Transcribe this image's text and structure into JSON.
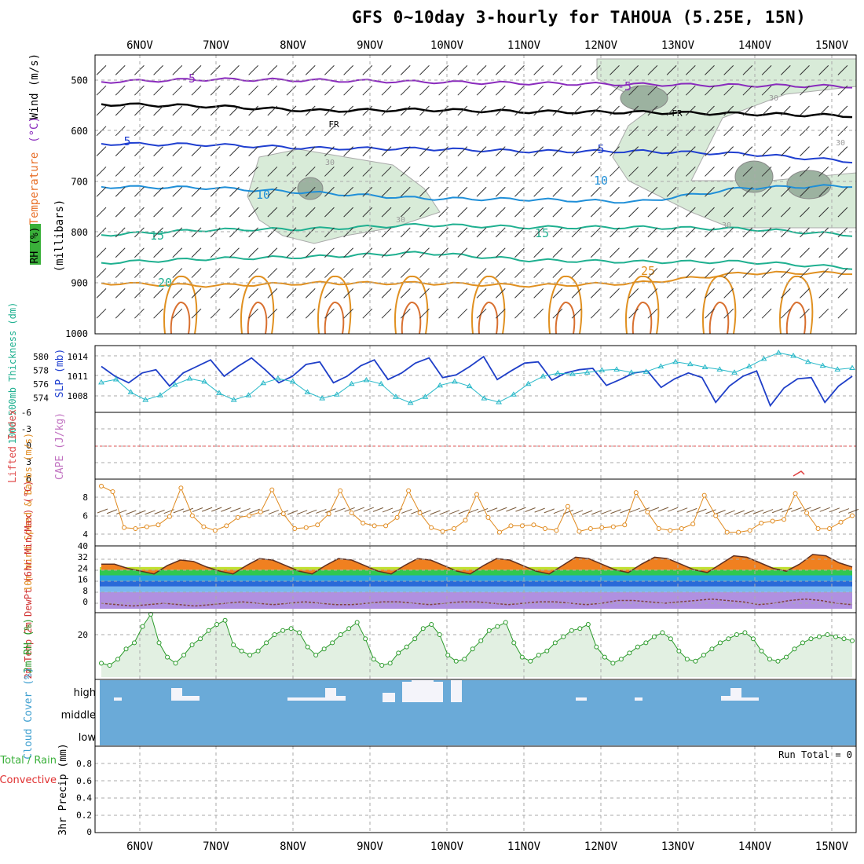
{
  "title": "GFS 0~10day 3-hourly for TAHOUA (5.25E, 15N)",
  "dates": [
    "6NOV",
    "7NOV",
    "8NOV",
    "9NOV",
    "10NOV",
    "11NOV",
    "12NOV",
    "13NOV",
    "14NOV",
    "15NOV"
  ],
  "colors": {
    "grid": "#aaaaaa",
    "purple": "#8a2bbd",
    "blue": "#1f3fd0",
    "cyan": "#1f8fd8",
    "teal": "#1fb090",
    "orange": "#e09020",
    "magenta": "#c01880",
    "rh": "#d8ebd8",
    "slp": "#1f3fc8",
    "thick": "#27b8c8",
    "wspd": "#e08a1e",
    "barb": "#7a5a3a",
    "rh2m": "#2a9a2a",
    "cloud": "#6aaad8"
  },
  "chart_data": [
    {
      "type": "contour",
      "panel": "upper",
      "ylabel_lines": [
        "Wind",
        "(m/s)",
        "Temperature",
        "(°C)",
        "RH",
        "(%)",
        "(millibars)"
      ],
      "ylim": [
        1000,
        450
      ],
      "yticks": [
        "500",
        "600",
        "700",
        "800",
        "900",
        "1000"
      ],
      "isotherms": [
        {
          "label": "-5",
          "color": "purple",
          "levels_mb": [
            503,
            498,
            500,
            503,
            506,
            508,
            510,
            512
          ]
        },
        {
          "label": "FR",
          "color": "black",
          "levels_mb": [
            547,
            551,
            560,
            558,
            562,
            563,
            566,
            570
          ]
        },
        {
          "label": "5",
          "color": "blue",
          "levels_mb": [
            625,
            627,
            634,
            635,
            640,
            640,
            645,
            660
          ]
        },
        {
          "label": "10",
          "color": "cyan",
          "levels_mb": [
            710,
            712,
            722,
            733,
            735,
            740,
            712,
            708
          ]
        },
        {
          "label": "15",
          "color": "teal",
          "levels_mb": [
            805,
            795,
            793,
            785,
            790,
            790,
            793,
            805
          ]
        },
        {
          "label": "20",
          "color": "teal",
          "levels_mb": [
            860,
            852,
            848,
            840,
            855,
            858,
            858,
            870
          ]
        },
        {
          "label": "25",
          "color": "orange",
          "levels_mb": [
            900,
            905,
            900,
            900,
            905,
            900,
            880,
            880
          ]
        }
      ],
      "inline_labels": [
        "-5",
        "-5",
        "FR",
        "FR",
        "5",
        "5",
        "10",
        "10",
        "15",
        "15",
        "20",
        "25",
        "30",
        "30",
        "30",
        "30",
        "30"
      ],
      "rh_contours": [
        "30"
      ]
    },
    {
      "type": "line",
      "panel": "pressure",
      "left_label": "1000-500mb Thickness (dm)",
      "right_label": "SLP (mb)",
      "left_ticks": [
        "580",
        "578",
        "576",
        "574"
      ],
      "right_ticks": [
        "1014",
        "1011",
        "1008"
      ],
      "series": [
        {
          "name": "SLP",
          "axis": "right",
          "values": [
            1012.5,
            1011,
            1010,
            1011.5,
            1012,
            1009.5,
            1011.5,
            1012.5,
            1013.5,
            1011,
            1012.5,
            1013.8,
            1012,
            1010,
            1011,
            1012.8,
            1013.2,
            1010,
            1011,
            1012.6,
            1013.5,
            1010.5,
            1011.5,
            1013,
            1013.8,
            1010.8,
            1011.2,
            1012.5,
            1014,
            1010.5,
            1011.8,
            1013,
            1013.2,
            1010.4,
            1011.5,
            1012,
            1012.2,
            1009.6,
            1010.5,
            1011.5,
            1011.8,
            1009.3,
            1010.6,
            1011.5,
            1010.8,
            1007,
            1009.5,
            1011,
            1011.8,
            1006.5,
            1009.2,
            1010.6,
            1010.8,
            1007,
            1009.5,
            1011
          ]
        },
        {
          "name": "Thickness",
          "axis": "left",
          "values": [
            576.5,
            576.9,
            575.2,
            574.2,
            574.8,
            576.2,
            577.0,
            576.6,
            575.1,
            574.2,
            574.8,
            576.4,
            577.0,
            576.6,
            575.2,
            574.4,
            574.9,
            576.3,
            576.8,
            576.3,
            574.6,
            573.8,
            574.6,
            576.1,
            576.6,
            576.0,
            574.4,
            573.9,
            574.9,
            576.3,
            577.3,
            577.7,
            577.6,
            577.8,
            578.1,
            578.2,
            577.8,
            577.9,
            578.6,
            579.2,
            578.9,
            578.5,
            578.2,
            577.8,
            578.6,
            579.6,
            580.4,
            580.0,
            579.2,
            578.7,
            578.2,
            578.4
          ]
        }
      ]
    },
    {
      "type": "line",
      "panel": "stability",
      "left_label": "Lifted Index",
      "right_label": "CAPE (J/kg)",
      "yticks": [
        "-6",
        "-3",
        "0",
        "3",
        "6"
      ],
      "series": [
        {
          "name": "CAPE",
          "values": [
            0
          ]
        }
      ]
    },
    {
      "type": "line",
      "panel": "wind10m",
      "ylabel": "10m Wind Speed & Barbs (m/s)",
      "yticks": [
        "8",
        "6",
        "4"
      ],
      "series": [
        {
          "name": "10m Wind Speed",
          "values": [
            9.2,
            8.6,
            4.7,
            4.6,
            4.8,
            5.0,
            5.9,
            9.0,
            6.0,
            4.8,
            4.4,
            4.9,
            5.8,
            6.0,
            6.4,
            8.8,
            6.2,
            4.6,
            4.7,
            5.0,
            6.2,
            8.7,
            6.3,
            5.2,
            4.9,
            4.9,
            5.8,
            8.7,
            6.3,
            4.7,
            4.3,
            4.6,
            5.5,
            8.3,
            5.8,
            4.2,
            4.9,
            4.9,
            5.0,
            4.6,
            4.4,
            7.0,
            4.3,
            4.6,
            4.7,
            4.8,
            5.0,
            8.5,
            6.4,
            4.6,
            4.4,
            4.6,
            5.1,
            8.2,
            6.0,
            4.2,
            4.2,
            4.4,
            5.2,
            5.4,
            5.6,
            8.4,
            6.3,
            4.6,
            4.6,
            5.3,
            6.0
          ]
        }
      ]
    },
    {
      "type": "area",
      "panel": "temp2m",
      "ylabel": "2m Temp 2m DewPt (6hr Min/Max) (°C)",
      "yticks": [
        "40",
        "32",
        "24",
        "16",
        "8",
        "0"
      ],
      "series": [
        {
          "name": "2m Temp",
          "values": [
            28,
            28,
            25,
            23,
            21,
            27,
            31,
            30,
            26,
            23,
            21,
            27,
            32,
            31,
            27,
            23,
            21,
            27,
            32,
            31,
            27,
            23,
            21,
            27,
            32,
            31,
            27,
            23,
            21,
            27,
            32,
            31,
            27,
            23,
            21,
            27,
            33,
            32,
            28,
            24,
            22,
            28,
            33,
            32,
            28,
            24,
            22,
            28,
            34,
            33,
            29,
            25,
            23,
            28,
            35,
            34,
            29,
            26
          ]
        },
        {
          "name": "2m DewPt",
          "values": [
            0,
            -1,
            -2,
            -1,
            0,
            -1,
            -2,
            -1,
            0,
            1,
            0,
            -1,
            0,
            1,
            0,
            -1,
            -1,
            0,
            1,
            1,
            0,
            -1,
            0,
            1,
            1,
            0,
            -1,
            0,
            1,
            1,
            0,
            -1,
            0,
            2,
            2,
            1,
            0,
            1,
            2,
            3,
            2,
            1,
            -1,
            0,
            2,
            3,
            2,
            0,
            -1
          ]
        }
      ]
    },
    {
      "type": "line",
      "panel": "rh2m",
      "ylabel": "2m RH (%)",
      "yticks": [
        "20"
      ],
      "series": [
        {
          "name": "2m RH",
          "values": [
            6,
            5,
            8,
            13,
            16,
            24,
            30,
            16,
            9,
            6,
            10,
            15,
            18,
            22,
            25,
            27,
            15,
            12,
            10,
            12,
            16,
            20,
            22,
            23,
            21,
            14,
            10,
            13,
            16,
            20,
            23,
            26,
            18,
            8,
            5,
            6,
            11,
            14,
            18,
            23,
            25,
            20,
            10,
            7,
            8,
            13,
            17,
            22,
            24,
            26,
            16,
            9,
            7,
            10,
            12,
            16,
            19,
            22,
            23,
            25,
            14,
            9,
            6,
            8,
            11,
            14,
            16,
            19,
            21,
            18,
            12,
            8,
            7,
            10,
            13,
            16,
            18,
            20,
            21,
            18,
            12,
            8,
            7,
            9,
            13,
            16,
            18,
            19,
            20,
            19,
            18,
            17
          ]
        }
      ]
    },
    {
      "type": "bar",
      "panel": "cloud",
      "ylabel": "Cloud Cover (%)",
      "levels": [
        "high",
        "middle",
        "low"
      ]
    },
    {
      "type": "bar",
      "panel": "precip",
      "ylabel": "3hr Precip (mm)",
      "legend": [
        "Total / Rain",
        "Convective"
      ],
      "yticks": [
        "0.8",
        "0.6",
        "0.4",
        "0.2",
        "0"
      ],
      "annotation": "Run Total = 0",
      "values": []
    }
  ]
}
